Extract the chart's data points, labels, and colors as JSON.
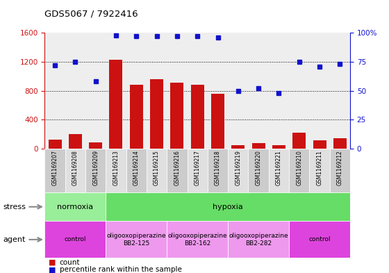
{
  "title": "GDS5067 / 7922416",
  "samples": [
    "GSM1169207",
    "GSM1169208",
    "GSM1169209",
    "GSM1169213",
    "GSM1169214",
    "GSM1169215",
    "GSM1169216",
    "GSM1169217",
    "GSM1169218",
    "GSM1169219",
    "GSM1169220",
    "GSM1169221",
    "GSM1169210",
    "GSM1169211",
    "GSM1169212"
  ],
  "counts": [
    130,
    200,
    90,
    1230,
    880,
    960,
    910,
    880,
    760,
    50,
    75,
    45,
    220,
    120,
    150
  ],
  "percentiles": [
    72,
    75,
    58,
    98,
    97,
    97,
    97,
    97,
    96,
    50,
    52,
    48,
    75,
    71,
    73
  ],
  "ylim_left": [
    0,
    1600
  ],
  "ylim_right": [
    0,
    100
  ],
  "yticks_left": [
    0,
    400,
    800,
    1200,
    1600
  ],
  "yticks_right": [
    0,
    25,
    50,
    75,
    100
  ],
  "bar_color": "#cc1111",
  "dot_color": "#1111cc",
  "stress_groups": [
    {
      "label": "normoxia",
      "start": 0,
      "end": 3,
      "color": "#99ee99"
    },
    {
      "label": "hypoxia",
      "start": 3,
      "end": 15,
      "color": "#66dd66"
    }
  ],
  "agent_groups": [
    {
      "label": "control",
      "start": 0,
      "end": 3,
      "color": "#dd44dd"
    },
    {
      "label": "oligooxopiperazine\nBB2-125",
      "start": 3,
      "end": 6,
      "color": "#ee99ee"
    },
    {
      "label": "oligooxopiperazine\nBB2-162",
      "start": 6,
      "end": 9,
      "color": "#ee99ee"
    },
    {
      "label": "oligooxopiperazine\nBB2-282",
      "start": 9,
      "end": 12,
      "color": "#ee99ee"
    },
    {
      "label": "control",
      "start": 12,
      "end": 15,
      "color": "#dd44dd"
    }
  ],
  "stress_row_label": "stress",
  "agent_row_label": "agent",
  "legend_count_label": "count",
  "legend_pct_label": "percentile rank within the sample",
  "background_color": "#ffffff",
  "plot_bg_color": "#eeeeee",
  "tick_label_color_left": "#cc1111",
  "tick_label_color_right": "#1111cc"
}
